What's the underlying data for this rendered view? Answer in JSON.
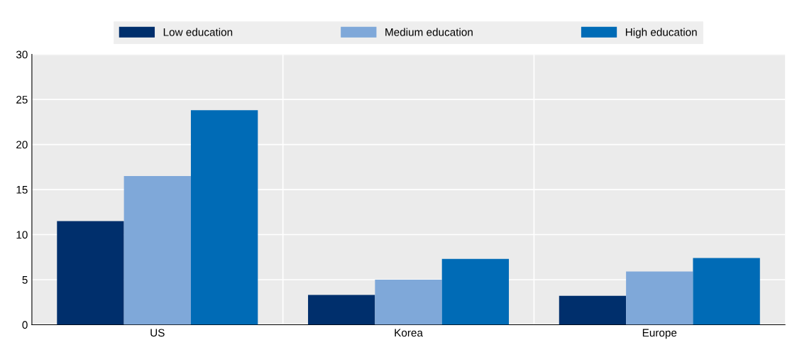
{
  "chart_data": {
    "type": "bar",
    "categories": [
      "US",
      "Korea",
      "Europe"
    ],
    "series": [
      {
        "name": "Low education",
        "color": "#002f6c",
        "values": [
          11.5,
          3.3,
          3.2
        ]
      },
      {
        "name": "Medium education",
        "color": "#7fa8d9",
        "values": [
          16.5,
          5.0,
          5.9
        ]
      },
      {
        "name": "High education",
        "color": "#006bb6",
        "values": [
          23.8,
          7.3,
          7.4
        ]
      }
    ],
    "ylim": [
      0,
      30
    ],
    "yticks": [
      0,
      5,
      10,
      15,
      20,
      25,
      30
    ],
    "grid": true,
    "legend": "top"
  }
}
